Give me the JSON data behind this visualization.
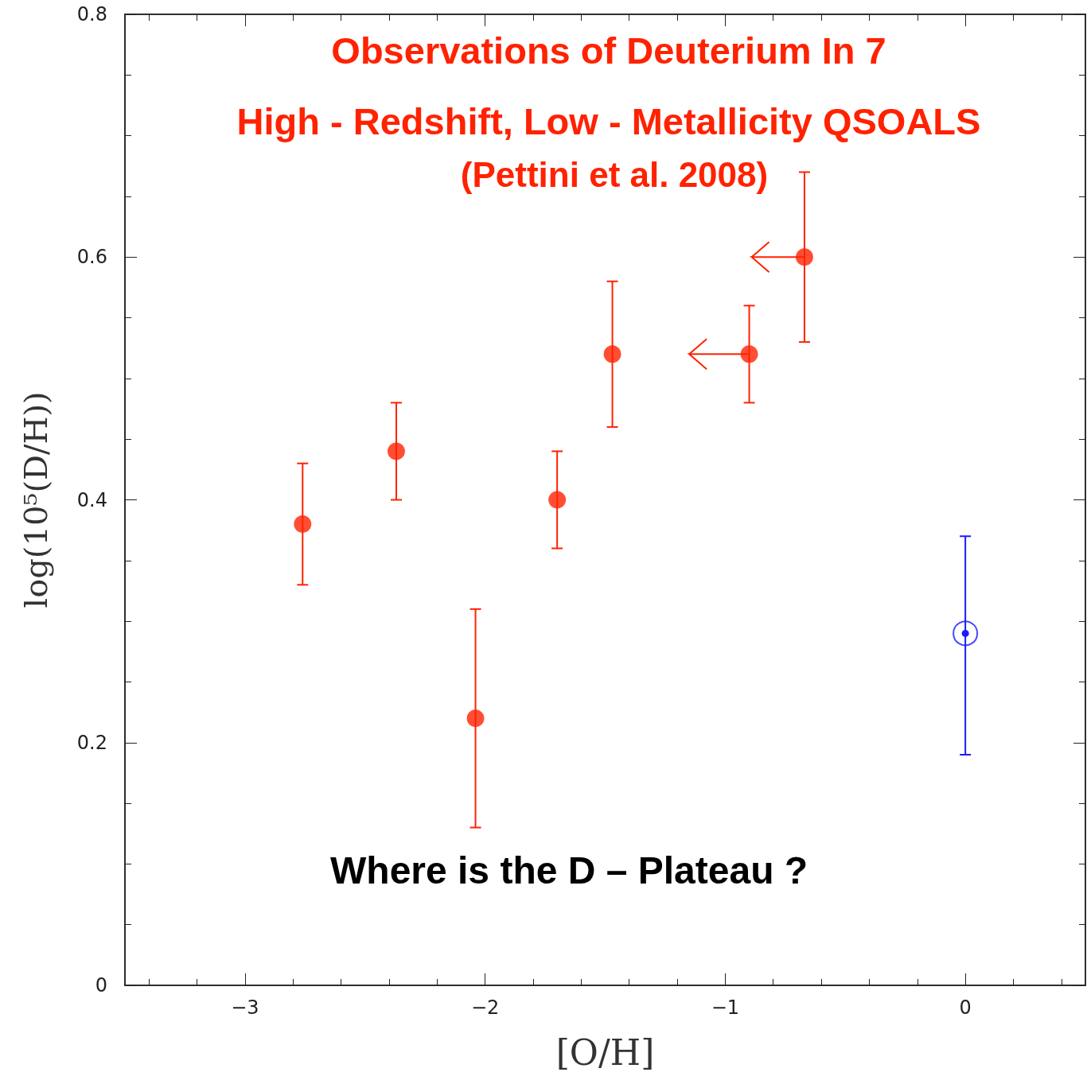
{
  "chart_data": {
    "type": "scatter",
    "title": "Observations of Deuterium In 7\nHigh - Redshift, Low - Metallicity QSOALS",
    "subtitle": "(Pettini et al. 2008)",
    "annotations": [
      "Where is the D – Plateau ?"
    ],
    "xlabel": "[O/H]",
    "ylabel": "log(10⁵(D/H))",
    "series": [
      {
        "color": "#ff2200",
        "x": [
          -2.76,
          -2.37,
          -2.04,
          -1.7,
          -1.47,
          -0.9,
          -0.67
        ],
        "values": [
          0.38,
          0.44,
          0.22,
          0.4,
          0.52,
          0.52,
          0.6
        ],
        "errors": [
          [
            0.33,
            0.43
          ],
          [
            0.4,
            0.48
          ],
          [
            0.13,
            0.31
          ],
          [
            0.36,
            0.44
          ],
          [
            0.46,
            0.58
          ],
          [
            0.48,
            0.56
          ],
          [
            0.53,
            0.67
          ]
        ],
        "xerrors": [
          null,
          null,
          null,
          null,
          null,
          [
            -1.15,
            -0.9
          ],
          [
            -0.89,
            -0.67
          ]
        ]
      },
      {
        "color": "#1a1aff",
        "x": [
          0
        ],
        "values": [
          0.29
        ],
        "errors": [
          [
            0.19,
            0.37
          ]
        ]
      }
    ],
    "marker": "circle",
    "xlim": [
      -3.5,
      0.5
    ],
    "xticks": [
      {
        "value": -3.4,
        "label": null
      },
      {
        "value": -3.2,
        "label": null
      },
      -3,
      {
        "value": -2.8,
        "label": null
      },
      {
        "value": -2.6,
        "label": null
      },
      {
        "value": -2.4,
        "label": null
      },
      {
        "value": -2.2,
        "label": null
      },
      -2,
      {
        "value": -1.8,
        "label": null
      },
      {
        "value": -1.6,
        "label": null
      },
      {
        "value": -1.4,
        "label": null
      },
      {
        "value": -1.2,
        "label": null
      },
      -1,
      {
        "value": -0.8,
        "label": null
      },
      {
        "value": -0.6,
        "label": null
      },
      {
        "value": -0.4,
        "label": null
      },
      {
        "value": -0.2,
        "label": null
      },
      0,
      {
        "value": 0.2,
        "label": null
      },
      {
        "value": 0.4,
        "label": null
      }
    ],
    "ylim": [
      0,
      0.8
    ],
    "yticks": [
      0,
      {
        "value": 0.05,
        "label": null
      },
      {
        "value": 0.1,
        "label": null
      },
      {
        "value": 0.15,
        "label": null
      },
      0.2,
      {
        "value": 0.25,
        "label": null
      },
      {
        "value": 0.3,
        "label": null
      },
      {
        "value": 0.35,
        "label": null
      },
      0.4,
      {
        "value": 0.45,
        "label": null
      },
      {
        "value": 0.5,
        "label": null
      },
      {
        "value": 0.55,
        "label": null
      },
      0.6,
      {
        "value": 0.65,
        "label": null
      },
      {
        "value": 0.7,
        "label": null
      },
      {
        "value": 0.75,
        "label": null
      },
      0.8
    ],
    "grid": false
  }
}
